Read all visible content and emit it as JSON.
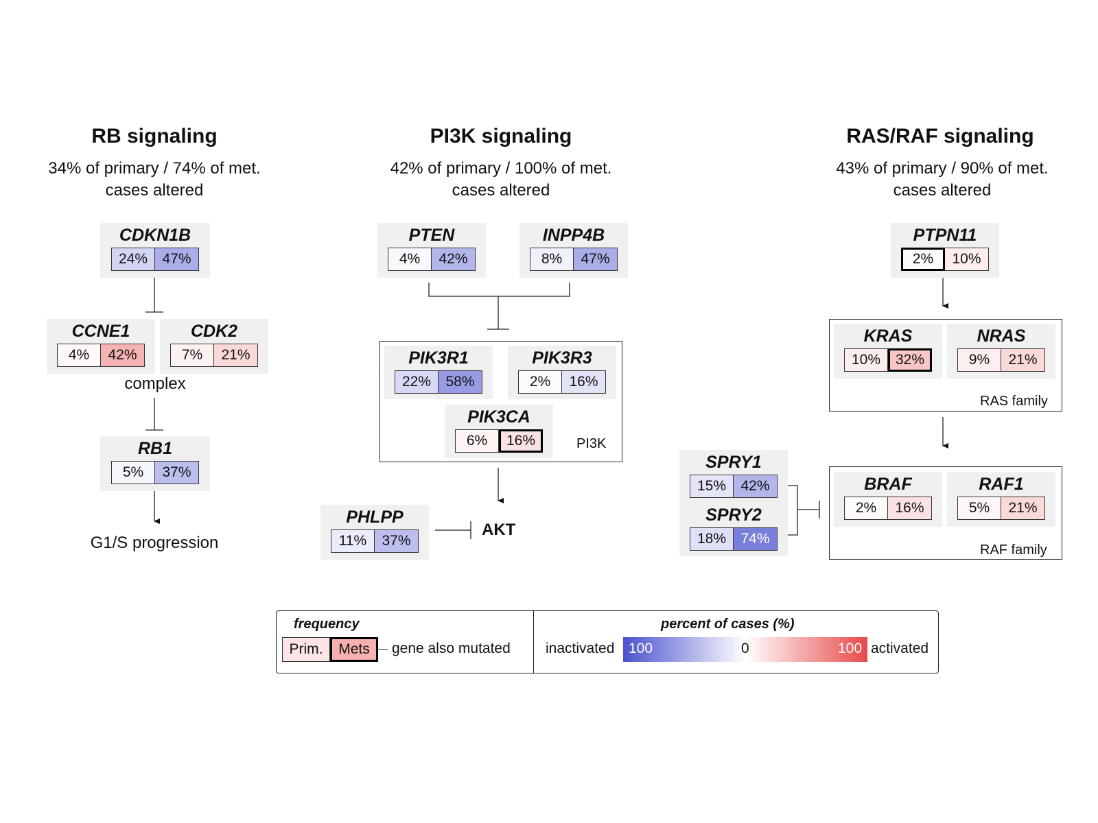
{
  "colors": {
    "activated": "#e84a4a",
    "inactivated": "#4a52cf",
    "neutral": "#ffffff",
    "box_bg": "#f0f0f0"
  },
  "sections": {
    "rb": {
      "title": "RB signaling",
      "subtitle1": "34% of primary / 74% of met.",
      "subtitle2": "cases altered"
    },
    "pi3k": {
      "title": "PI3K signaling",
      "subtitle1": "42% of primary / 100% of met.",
      "subtitle2": "cases altered"
    },
    "ras": {
      "title": "RAS/RAF signaling",
      "subtitle1": "43% of primary / 90% of met.",
      "subtitle2": "cases altered"
    }
  },
  "genes": {
    "cdkn1b": {
      "name": "CDKN1B",
      "prim": "24%",
      "mets": "47%",
      "prim_dir": "inactivated",
      "prim_val": 24,
      "mets_dir": "inactivated",
      "mets_val": 47,
      "prim_mut": false,
      "mets_mut": false
    },
    "ccne1": {
      "name": "CCNE1",
      "prim": "4%",
      "mets": "42%",
      "prim_dir": "activated",
      "prim_val": 4,
      "mets_dir": "activated",
      "mets_val": 42,
      "prim_mut": false,
      "mets_mut": false
    },
    "cdk2": {
      "name": "CDK2",
      "prim": "7%",
      "mets": "21%",
      "prim_dir": "activated",
      "prim_val": 7,
      "mets_dir": "activated",
      "mets_val": 21,
      "prim_mut": false,
      "mets_mut": false
    },
    "rb1": {
      "name": "RB1",
      "prim": "5%",
      "mets": "37%",
      "prim_dir": "inactivated",
      "prim_val": 5,
      "mets_dir": "inactivated",
      "mets_val": 37,
      "prim_mut": false,
      "mets_mut": false
    },
    "pten": {
      "name": "PTEN",
      "prim": "4%",
      "mets": "42%",
      "prim_dir": "inactivated",
      "prim_val": 4,
      "mets_dir": "inactivated",
      "mets_val": 42,
      "prim_mut": false,
      "mets_mut": false
    },
    "inpp4b": {
      "name": "INPP4B",
      "prim": "8%",
      "mets": "47%",
      "prim_dir": "inactivated",
      "prim_val": 8,
      "mets_dir": "inactivated",
      "mets_val": 47,
      "prim_mut": false,
      "mets_mut": false
    },
    "pik3r1": {
      "name": "PIK3R1",
      "prim": "22%",
      "mets": "58%",
      "prim_dir": "inactivated",
      "prim_val": 22,
      "mets_dir": "inactivated",
      "mets_val": 58,
      "prim_mut": false,
      "mets_mut": false
    },
    "pik3r3": {
      "name": "PIK3R3",
      "prim": "2%",
      "mets": "16%",
      "prim_dir": "inactivated",
      "prim_val": 2,
      "mets_dir": "inactivated",
      "mets_val": 16,
      "prim_mut": false,
      "mets_mut": false
    },
    "pik3ca": {
      "name": "PIK3CA",
      "prim": "6%",
      "mets": "16%",
      "prim_dir": "activated",
      "prim_val": 6,
      "mets_dir": "activated",
      "mets_val": 16,
      "prim_mut": false,
      "mets_mut": true
    },
    "phlpp": {
      "name": "PHLPP",
      "prim": "11%",
      "mets": "37%",
      "prim_dir": "inactivated",
      "prim_val": 11,
      "mets_dir": "inactivated",
      "mets_val": 37,
      "prim_mut": false,
      "mets_mut": false
    },
    "ptpn11": {
      "name": "PTPN11",
      "prim": "2%",
      "mets": "10%",
      "prim_dir": "activated",
      "prim_val": 2,
      "mets_dir": "activated",
      "mets_val": 10,
      "prim_mut": true,
      "mets_mut": false
    },
    "kras": {
      "name": "KRAS",
      "prim": "10%",
      "mets": "32%",
      "prim_dir": "activated",
      "prim_val": 10,
      "mets_dir": "activated",
      "mets_val": 32,
      "prim_mut": false,
      "mets_mut": true
    },
    "nras": {
      "name": "NRAS",
      "prim": "9%",
      "mets": "21%",
      "prim_dir": "activated",
      "prim_val": 9,
      "mets_dir": "activated",
      "mets_val": 21,
      "prim_mut": false,
      "mets_mut": false
    },
    "spry1": {
      "name": "SPRY1",
      "prim": "15%",
      "mets": "42%",
      "prim_dir": "inactivated",
      "prim_val": 15,
      "mets_dir": "inactivated",
      "mets_val": 42,
      "prim_mut": false,
      "mets_mut": false
    },
    "spry2": {
      "name": "SPRY2",
      "prim": "18%",
      "mets": "74%",
      "prim_dir": "inactivated",
      "prim_val": 18,
      "mets_dir": "inactivated",
      "mets_val": 74,
      "prim_mut": false,
      "mets_mut": false
    },
    "braf": {
      "name": "BRAF",
      "prim": "2%",
      "mets": "16%",
      "prim_dir": "activated",
      "prim_val": 2,
      "mets_dir": "activated",
      "mets_val": 16,
      "prim_mut": false,
      "mets_mut": false
    },
    "raf1": {
      "name": "RAF1",
      "prim": "5%",
      "mets": "21%",
      "prim_dir": "activated",
      "prim_val": 5,
      "mets_dir": "activated",
      "mets_val": 21,
      "prim_mut": false,
      "mets_mut": false
    }
  },
  "labels": {
    "complex": "complex",
    "g1s": "G1/S progression",
    "pi3k": "PI3K",
    "akt": "AKT",
    "ras_family": "RAS family",
    "raf_family": "RAF family"
  },
  "legend": {
    "frequency": "frequency",
    "prim": "Prim.",
    "mets": "Mets",
    "also_mutated": "gene also mutated",
    "percent_title": "percent of cases (%)",
    "inactivated": "inactivated",
    "activated": "activated",
    "left_val": "100",
    "mid_val": "0",
    "right_val": "100"
  }
}
